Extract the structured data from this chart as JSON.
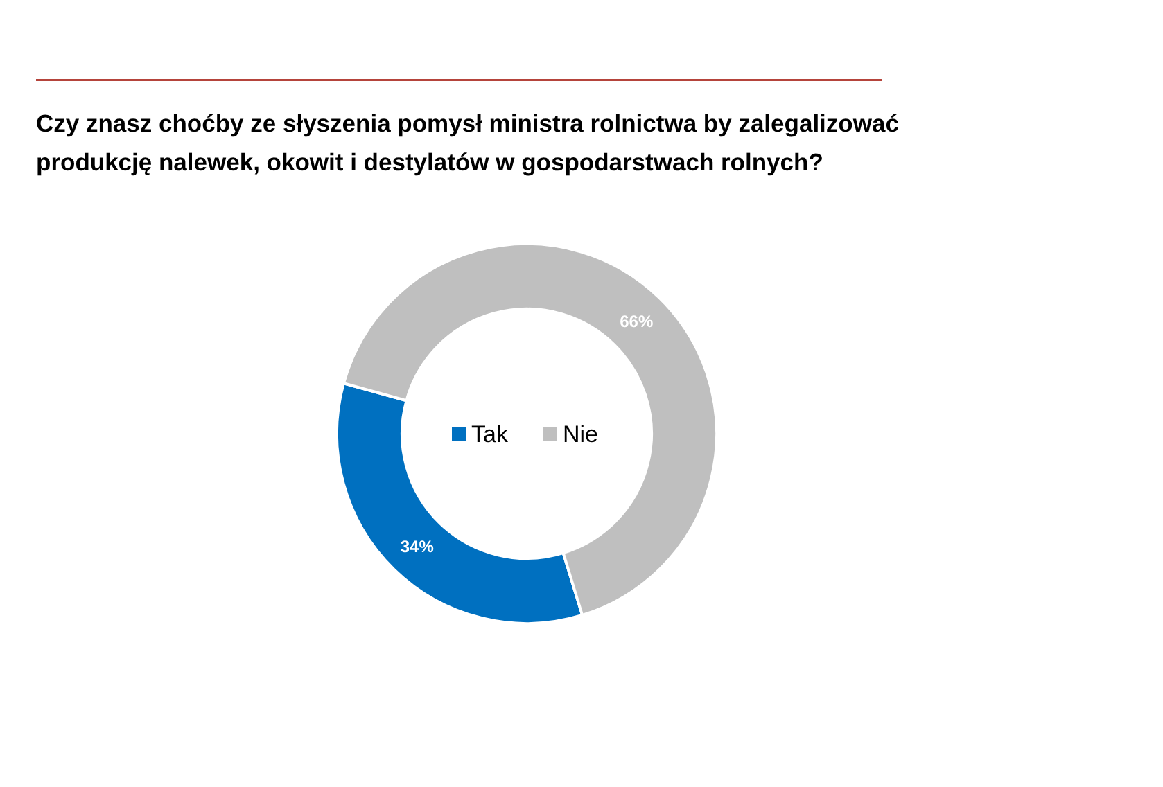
{
  "chart_data": {
    "type": "donut",
    "title": "Czy znasz choćby ze słyszenia pomysł ministra rolnictwa by zalegalizować\nprodukcję nalewek, okowit i destylatów w gospodarstwach rolnych?",
    "categories": [
      "Tak",
      "Nie"
    ],
    "values": [
      34,
      66
    ],
    "colors": [
      "#0070c0",
      "#bfbfbf"
    ],
    "value_labels": [
      "34%",
      "66%"
    ],
    "legend": "center"
  }
}
